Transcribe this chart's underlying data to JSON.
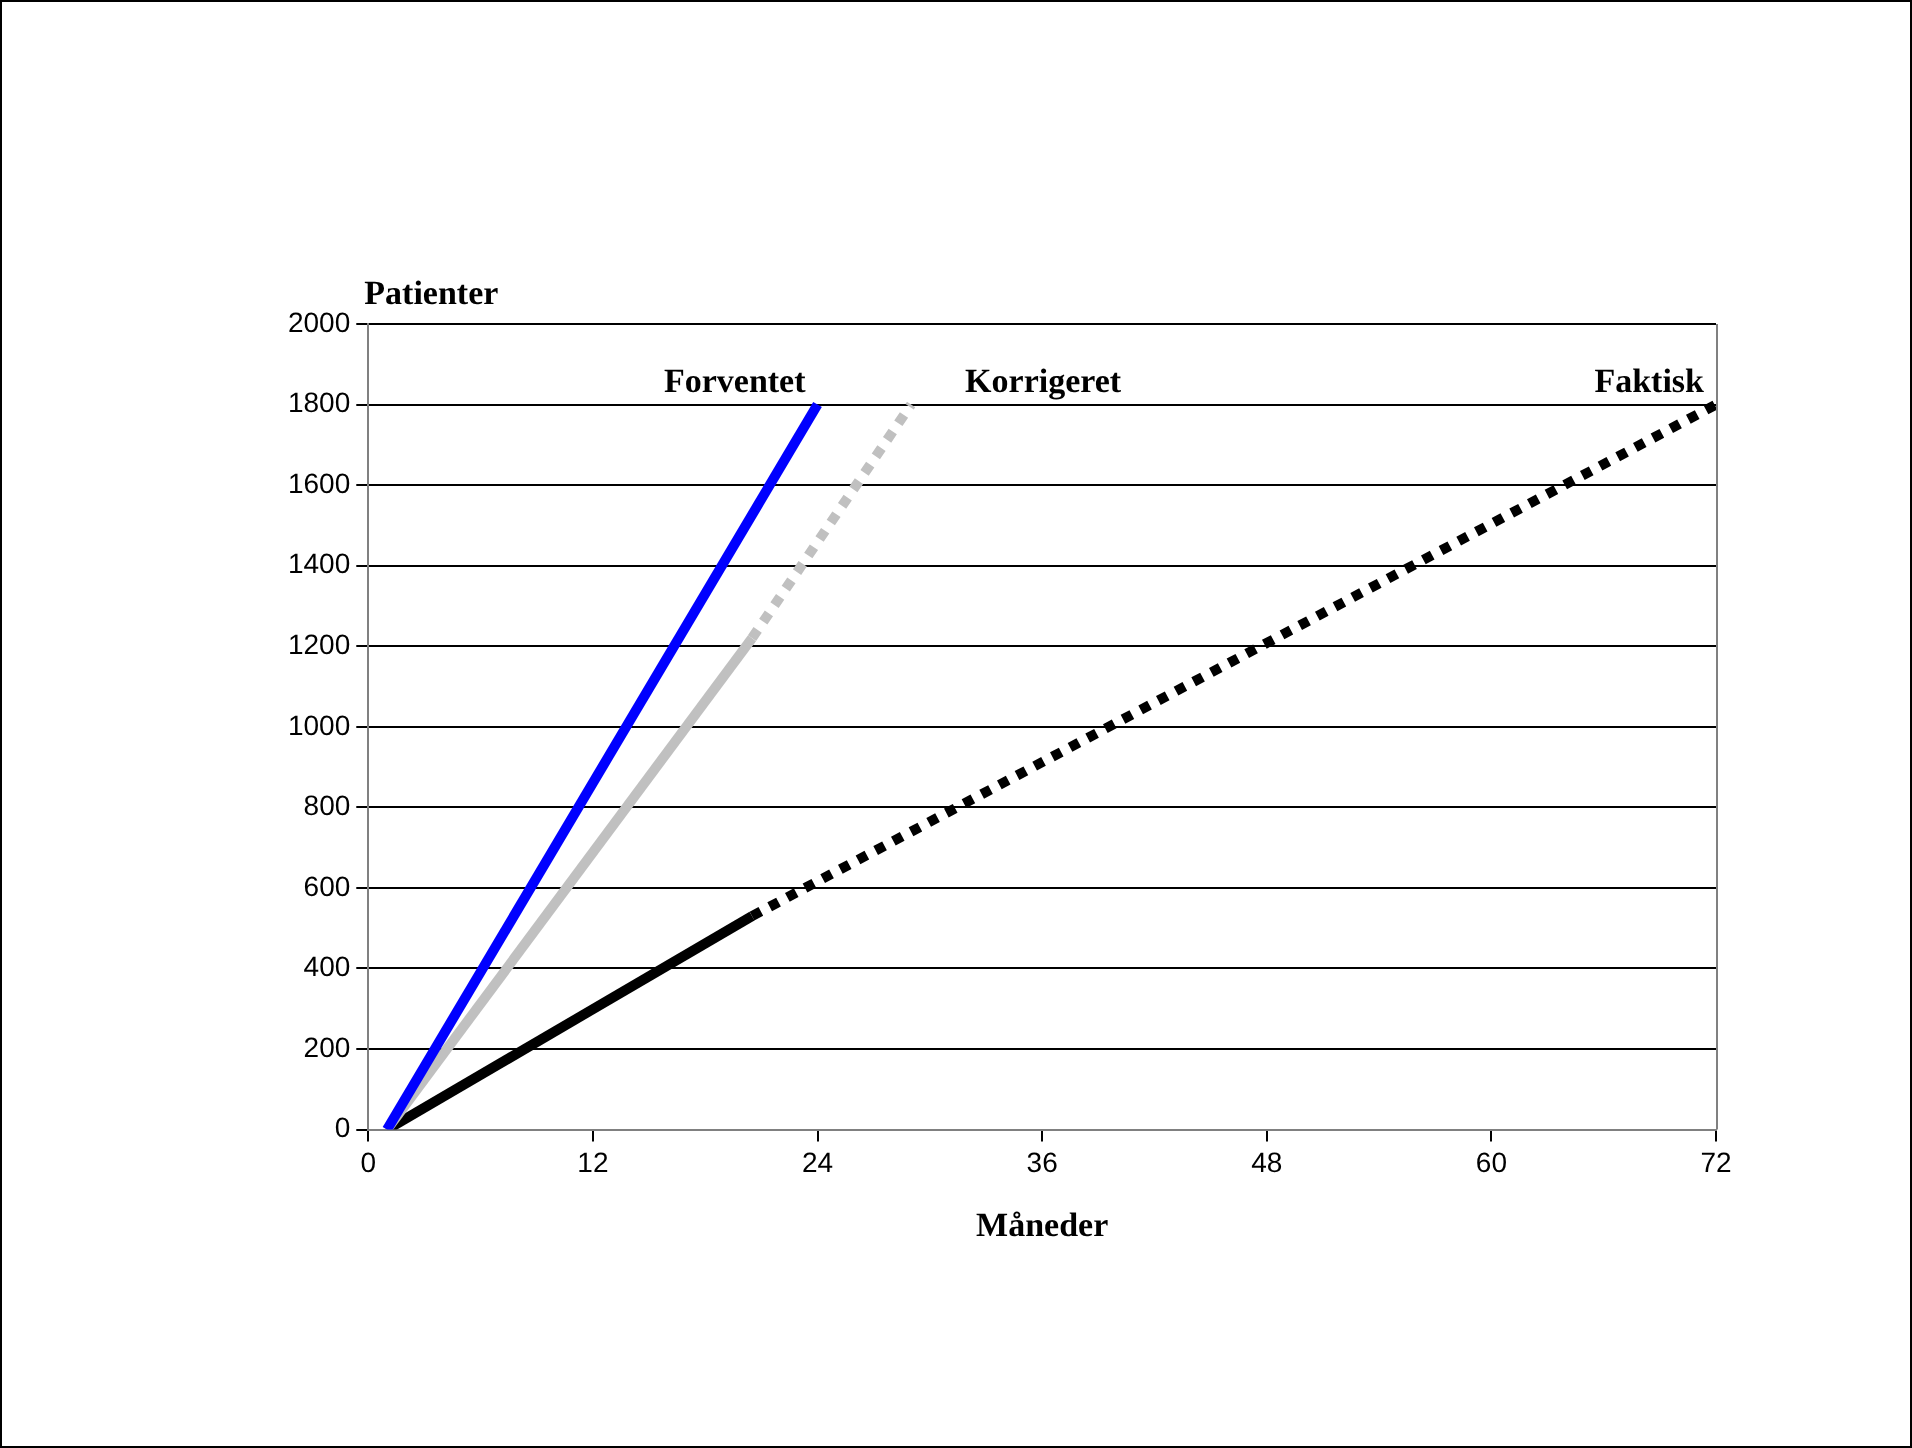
{
  "chart_data": {
    "type": "line",
    "ylabel": "Patienter",
    "xlabel": "Måneder",
    "xlim": [
      0,
      72
    ],
    "xticks": [
      0,
      12,
      24,
      36,
      48,
      60,
      72
    ],
    "ylim": [
      0,
      2000
    ],
    "yticks": [
      0,
      200,
      400,
      600,
      800,
      1000,
      1200,
      1400,
      1600,
      1800,
      2000
    ],
    "grid": "y",
    "legend": false,
    "marker": "none",
    "series": [
      {
        "name": "Forventet",
        "color": "#0000ff",
        "x": [
          1,
          24
        ],
        "values": [
          0,
          1800
        ],
        "line_style": "solid"
      },
      {
        "color": "#c0c0c0",
        "x": [
          1,
          20.5
        ],
        "values": [
          0,
          1220
        ],
        "line_style": "solid"
      },
      {
        "name": "Korrigeret",
        "color": "#c0c0c0",
        "x": [
          20.5,
          29
        ],
        "values": [
          1220,
          1800
        ],
        "line_style": "dotted"
      },
      {
        "color": "#000000",
        "x": [
          1,
          20.5
        ],
        "values": [
          0,
          530
        ],
        "line_style": "solid"
      },
      {
        "name": "Faktisk",
        "color": "#000000",
        "x": [
          20.5,
          72
        ],
        "values": [
          530,
          1800
        ],
        "line_style": "dotted"
      }
    ]
  }
}
